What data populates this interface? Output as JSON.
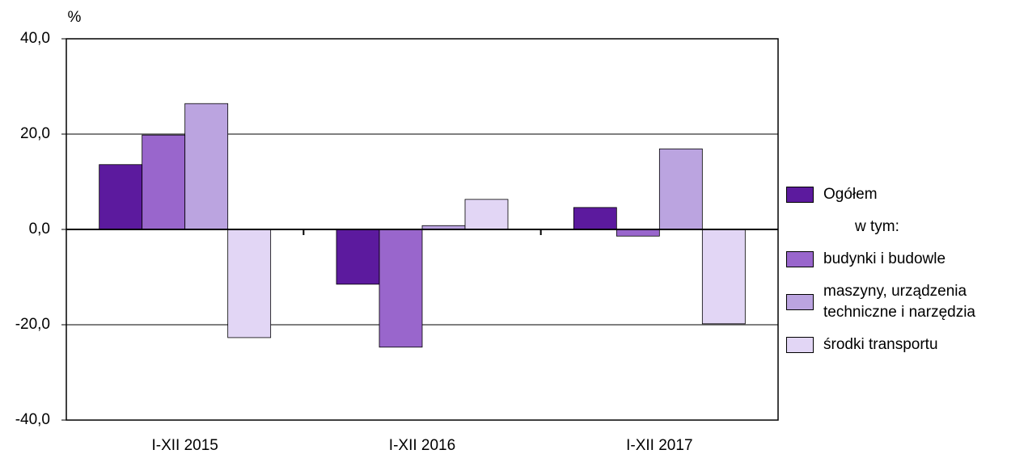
{
  "chart_data": {
    "type": "bar",
    "y_label": "%",
    "categories": [
      "I-XII 2015",
      "I-XII 2016",
      "I-XII 2017"
    ],
    "series": [
      {
        "name": "Ogółem",
        "color": "#5c1a9e",
        "values": [
          13.6,
          -11.5,
          4.6
        ]
      },
      {
        "name": "budynki i budowle",
        "color": "#9966cc",
        "values": [
          19.8,
          -24.7,
          -1.4
        ]
      },
      {
        "name": "maszyny, urządzenia techniczne i narzędzia",
        "color": "#bba4e0",
        "values": [
          26.4,
          0.8,
          16.9
        ]
      },
      {
        "name": "środki transportu",
        "color": "#e2d6f5",
        "values": [
          -22.7,
          6.3,
          -19.8
        ]
      }
    ],
    "legend_subheading": "w tym:",
    "ylim": [
      -40,
      40
    ],
    "yticks": [
      {
        "value": -40,
        "label": "-40,0"
      },
      {
        "value": -20,
        "label": "-20,0"
      },
      {
        "value": 0,
        "label": "0,0"
      },
      {
        "value": 20,
        "label": "20,0"
      },
      {
        "value": 40,
        "label": "40,0"
      }
    ],
    "grid": true,
    "legend": "right"
  }
}
